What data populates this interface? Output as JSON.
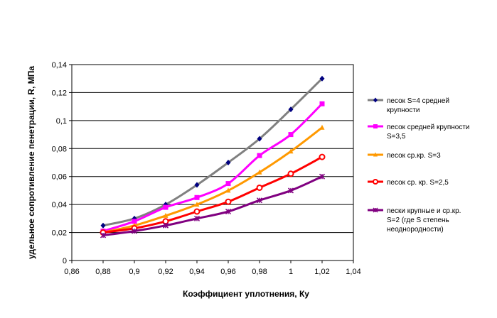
{
  "chart_data": {
    "type": "line",
    "xlabel": "Коэффициент уплотнения, Ку",
    "ylabel": "удельное сопротивление пенетрации, R, МПа",
    "xlim": [
      0.86,
      1.04
    ],
    "ylim": [
      0,
      0.14
    ],
    "x_ticks": [
      "0,86",
      "0,88",
      "0,9",
      "0,92",
      "0,94",
      "0,96",
      "0,98",
      "1",
      "1,02",
      "1,04"
    ],
    "y_ticks": [
      "0",
      "0,02",
      "0,04",
      "0,06",
      "0,08",
      "0,1",
      "0,12",
      "0,14"
    ],
    "grid": "horizontal",
    "legend_position": "right",
    "x": [
      0.88,
      0.9,
      0.92,
      0.94,
      0.96,
      0.98,
      1.0,
      1.02
    ],
    "series": [
      {
        "name": "песок  S=4 средней крупности",
        "legend_lines": [
          "песок  S=4 средней",
          "крупности"
        ],
        "color": "#808080",
        "marker_color": "#000080",
        "marker": "diamond",
        "values": [
          0.025,
          0.03,
          0.04,
          0.054,
          0.07,
          0.087,
          0.108,
          0.13
        ]
      },
      {
        "name": "песок средней крупности S=3,5",
        "legend_lines": [
          "песок средней крупности",
          "S=3,5"
        ],
        "color": "#ff00ff",
        "marker_color": "#ff00ff",
        "marker": "square",
        "values": [
          0.021,
          0.028,
          0.038,
          0.045,
          0.055,
          0.075,
          0.09,
          0.112
        ]
      },
      {
        "name": "песок ср.кр. S=3",
        "legend_lines": [
          "песок ср.кр. S=3"
        ],
        "color": "#ff9900",
        "marker_color": "#ff9900",
        "marker": "triangle",
        "values": [
          0.02,
          0.025,
          0.032,
          0.04,
          0.05,
          0.063,
          0.078,
          0.095
        ]
      },
      {
        "name": "песок ср. кр. S=2,5",
        "legend_lines": [
          "песок ср. кр. S=2,5"
        ],
        "color": "#ff0000",
        "marker_color": "#ff0000",
        "marker": "circle",
        "values": [
          0.02,
          0.023,
          0.028,
          0.035,
          0.042,
          0.052,
          0.062,
          0.074
        ]
      },
      {
        "name": "пески крупные и ср.кр. S=2 (где S степень неоднородности)",
        "legend_lines": [
          "пески крупные и ср.кр.",
          "S=2 (где S степень",
          "неоднородности)"
        ],
        "color": "#800080",
        "marker_color": "#800080",
        "marker": "star",
        "values": [
          0.018,
          0.021,
          0.025,
          0.03,
          0.035,
          0.043,
          0.05,
          0.06
        ]
      }
    ]
  }
}
